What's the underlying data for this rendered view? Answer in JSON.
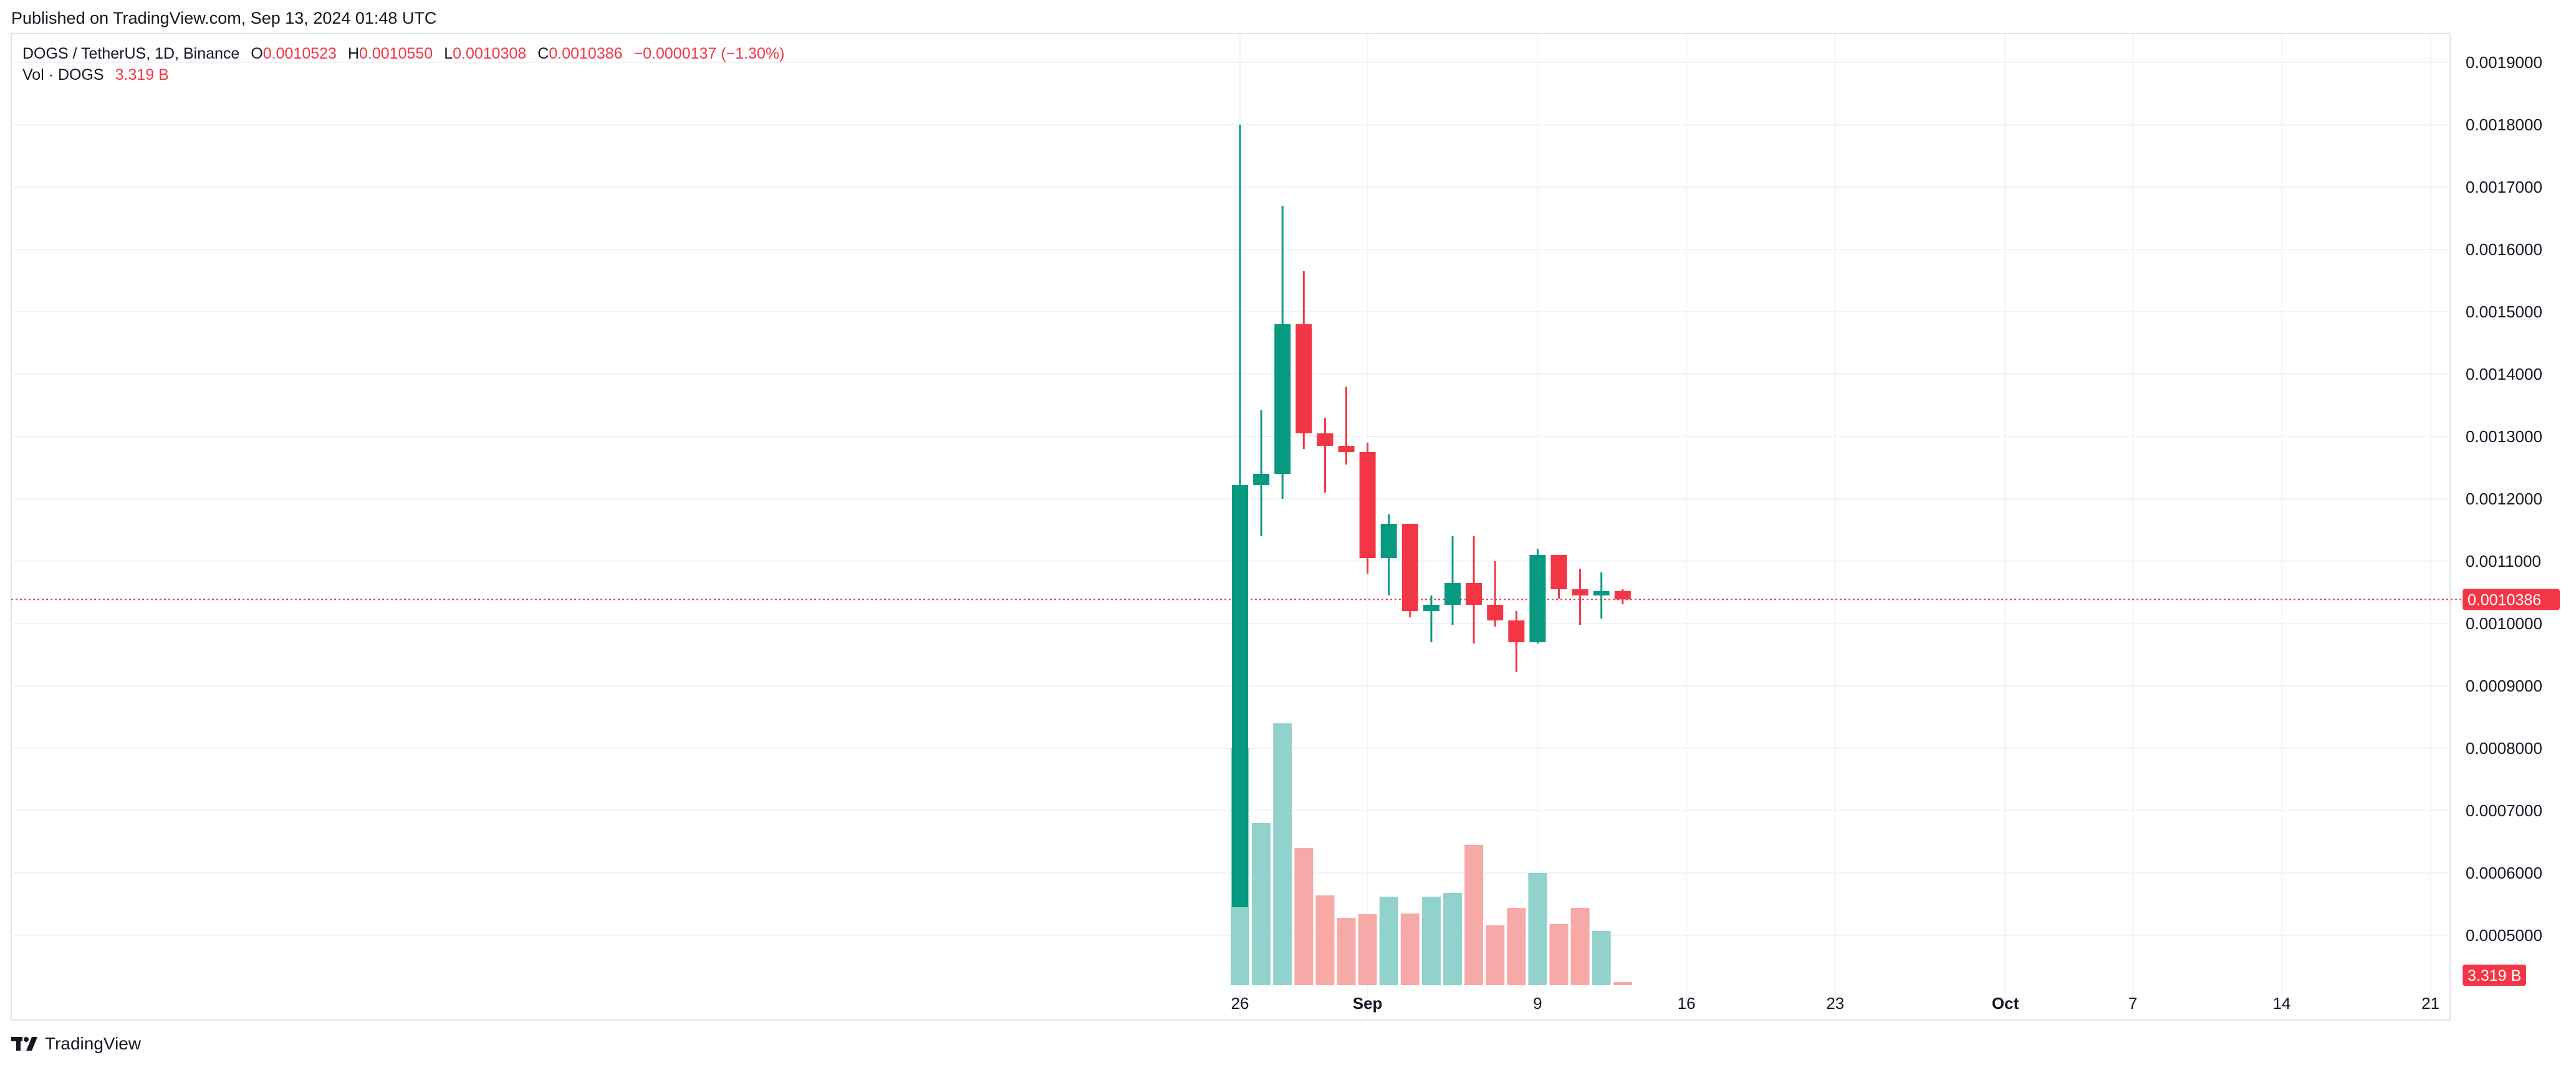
{
  "published": "Published on TradingView.com, Sep 13, 2024 01:48 UTC",
  "legend": {
    "symbol": "DOGS / TetherUS, 1D, Binance",
    "o_label": "O",
    "o_value": "0.0010523",
    "h_label": "H",
    "h_value": "0.0010550",
    "l_label": "L",
    "l_value": "0.0010308",
    "c_label": "C",
    "c_value": "0.0010386",
    "change": "−0.0000137 (−1.30%)",
    "vol_label": "Vol · DOGS",
    "vol_value": "3.319 B"
  },
  "footer": {
    "brand": "TradingView"
  },
  "colors": {
    "up": "#089981",
    "down": "#f23645",
    "up_volume": "#92d2cc",
    "down_volume": "#f7a9a7",
    "grid": "#f0f3fa",
    "text": "#131722"
  },
  "chart_data": {
    "type": "candlestick",
    "y_axis": {
      "ticks": [
        0.0005,
        0.0006,
        0.0007,
        0.0008,
        0.0009,
        0.001,
        0.0011,
        0.0012,
        0.0013,
        0.0014,
        0.0015,
        0.0016,
        0.0017,
        0.0018,
        0.0019
      ],
      "tick_labels": [
        "0.0005000",
        "0.0006000",
        "0.0007000",
        "0.0008000",
        "0.0009000",
        "0.0010000",
        "0.0011000",
        "0.0012000",
        "0.0013000",
        "0.0014000",
        "0.0015000",
        "0.0016000",
        "0.0017000",
        "0.0018000",
        "0.0019000"
      ],
      "position": "right"
    },
    "x_axis": {
      "tick_labels": [
        {
          "label": "26",
          "date": "2024-08-26",
          "bold": false
        },
        {
          "label": "Sep",
          "date": "2024-09-01",
          "bold": true
        },
        {
          "label": "9",
          "date": "2024-09-09",
          "bold": false
        },
        {
          "label": "16",
          "date": "2024-09-16",
          "bold": false
        },
        {
          "label": "23",
          "date": "2024-09-23",
          "bold": false
        },
        {
          "label": "Oct",
          "date": "2024-10-01",
          "bold": true
        },
        {
          "label": "7",
          "date": "2024-10-07",
          "bold": false
        },
        {
          "label": "14",
          "date": "2024-10-14",
          "bold": false
        },
        {
          "label": "21",
          "date": "2024-10-21",
          "bold": false
        }
      ]
    },
    "last_price": 0.0010386,
    "last_price_label": "0.0010386",
    "last_volume_label": "3.319 B",
    "candles": [
      {
        "date": "2024-08-26",
        "open": 0.000545,
        "high": 0.0018,
        "low": 0.000545,
        "close": 0.001222
      },
      {
        "date": "2024-08-27",
        "open": 0.001222,
        "high": 0.001342,
        "low": 0.00114,
        "close": 0.00124
      },
      {
        "date": "2024-08-28",
        "open": 0.00124,
        "high": 0.00167,
        "low": 0.0012,
        "close": 0.00148
      },
      {
        "date": "2024-08-29",
        "open": 0.00148,
        "high": 0.001565,
        "low": 0.00128,
        "close": 0.001305
      },
      {
        "date": "2024-08-30",
        "open": 0.001305,
        "high": 0.00133,
        "low": 0.00121,
        "close": 0.001285
      },
      {
        "date": "2024-08-31",
        "open": 0.001285,
        "high": 0.00138,
        "low": 0.001255,
        "close": 0.001275
      },
      {
        "date": "2024-09-01",
        "open": 0.001275,
        "high": 0.00129,
        "low": 0.00108,
        "close": 0.001105
      },
      {
        "date": "2024-09-02",
        "open": 0.001105,
        "high": 0.001175,
        "low": 0.001045,
        "close": 0.00116
      },
      {
        "date": "2024-09-03",
        "open": 0.00116,
        "high": 0.00116,
        "low": 0.00101,
        "close": 0.00102
      },
      {
        "date": "2024-09-04",
        "open": 0.00102,
        "high": 0.001045,
        "low": 0.00097,
        "close": 0.00103
      },
      {
        "date": "2024-09-05",
        "open": 0.00103,
        "high": 0.00114,
        "low": 0.000998,
        "close": 0.001065
      },
      {
        "date": "2024-09-06",
        "open": 0.001065,
        "high": 0.00114,
        "low": 0.000968,
        "close": 0.00103
      },
      {
        "date": "2024-09-07",
        "open": 0.00103,
        "high": 0.0011,
        "low": 0.000995,
        "close": 0.001005
      },
      {
        "date": "2024-09-08",
        "open": 0.001005,
        "high": 0.00102,
        "low": 0.000922,
        "close": 0.00097
      },
      {
        "date": "2024-09-09",
        "open": 0.00097,
        "high": 0.00112,
        "low": 0.000968,
        "close": 0.00111
      },
      {
        "date": "2024-09-10",
        "open": 0.00111,
        "high": 0.00111,
        "low": 0.00104,
        "close": 0.001055
      },
      {
        "date": "2024-09-11",
        "open": 0.001055,
        "high": 0.001088,
        "low": 0.000998,
        "close": 0.001045
      },
      {
        "date": "2024-09-12",
        "open": 0.001045,
        "high": 0.001082,
        "low": 0.001008,
        "close": 0.001052
      },
      {
        "date": "2024-09-13",
        "open": 0.0010523,
        "high": 0.001055,
        "low": 0.0010308,
        "close": 0.0010386
      }
    ],
    "volume_scale_note": "volume shown relative to panel, no volume axis printed",
    "volumes": [
      {
        "date": "2024-08-26",
        "value": 0.38,
        "up": true
      },
      {
        "date": "2024-08-27",
        "value": 0.26,
        "up": true
      },
      {
        "date": "2024-08-28",
        "value": 0.42,
        "up": true
      },
      {
        "date": "2024-08-29",
        "value": 0.22,
        "up": false
      },
      {
        "date": "2024-08-30",
        "value": 0.144,
        "up": false
      },
      {
        "date": "2024-08-31",
        "value": 0.108,
        "up": false
      },
      {
        "date": "2024-09-01",
        "value": 0.114,
        "up": false
      },
      {
        "date": "2024-09-02",
        "value": 0.142,
        "up": true
      },
      {
        "date": "2024-09-03",
        "value": 0.115,
        "up": false
      },
      {
        "date": "2024-09-04",
        "value": 0.142,
        "up": true
      },
      {
        "date": "2024-09-05",
        "value": 0.148,
        "up": true
      },
      {
        "date": "2024-09-06",
        "value": 0.225,
        "up": false
      },
      {
        "date": "2024-09-07",
        "value": 0.096,
        "up": false
      },
      {
        "date": "2024-09-08",
        "value": 0.124,
        "up": false
      },
      {
        "date": "2024-09-09",
        "value": 0.18,
        "up": true
      },
      {
        "date": "2024-09-10",
        "value": 0.098,
        "up": false
      },
      {
        "date": "2024-09-11",
        "value": 0.124,
        "up": false
      },
      {
        "date": "2024-09-12",
        "value": 0.087,
        "up": true
      },
      {
        "date": "2024-09-13",
        "value": 0.005,
        "up": false
      }
    ]
  }
}
